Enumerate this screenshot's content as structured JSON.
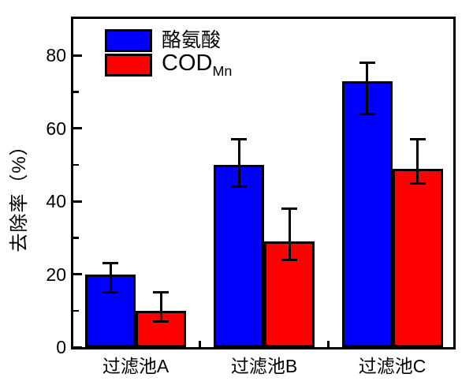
{
  "chart_data": {
    "type": "bar",
    "title": "",
    "xlabel": "",
    "ylabel": "去除率（%）",
    "categories": [
      "过滤池A",
      "过滤池B",
      "过滤池C"
    ],
    "series": [
      {
        "name": "酪氨酸",
        "label_main": "酪氨酸",
        "label_sub": "",
        "color": "#0000fe",
        "values": [
          20,
          50,
          73
        ],
        "err_low": [
          15,
          44,
          64
        ],
        "err_high": [
          23,
          57,
          78
        ]
      },
      {
        "name": "COD_Mn",
        "label_main": "COD",
        "label_sub": "Mn",
        "color": "#fe0000",
        "values": [
          10,
          29,
          49
        ],
        "err_low": [
          7,
          24,
          45
        ],
        "err_high": [
          15,
          38,
          57
        ]
      }
    ],
    "ylim": [
      0,
      90
    ],
    "yticks_major": [
      0,
      20,
      40,
      60,
      80
    ],
    "yticks_minor": [
      10,
      30,
      50,
      70
    ],
    "grid": false,
    "legend_position": "top-left-inside",
    "axis_color": "#000000",
    "bar_border_color": "#000000",
    "error_bar_color": "#000000",
    "background_color": "#ffffff"
  }
}
